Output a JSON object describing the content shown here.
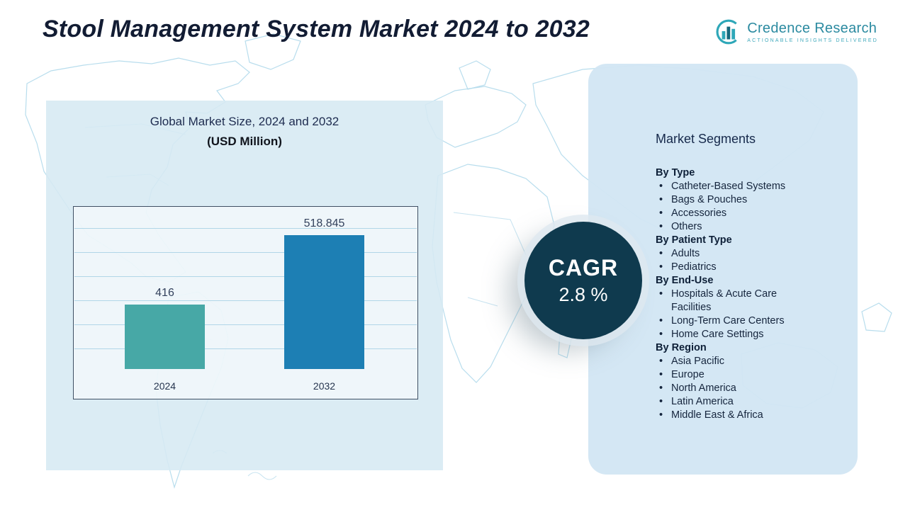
{
  "header": {
    "title": "Stool Management System Market 2024 to 2032",
    "logo": {
      "name": "Credence Research",
      "tagline": "ACTIONABLE INSIGHTS DELIVERED"
    }
  },
  "chart": {
    "title_line1": "Global Market Size, 2024 and 2032",
    "title_line2": "(USD Million)"
  },
  "chart_data": {
    "type": "bar",
    "title": "Global Market Size, 2024 and 2032 (USD Million)",
    "categories": [
      "2024",
      "2032"
    ],
    "values": [
      416,
      518.845
    ],
    "value_labels": [
      "416",
      "518.845"
    ],
    "unit": "USD Million",
    "grid": true,
    "legend": "none",
    "ylim": [
      320,
      580
    ],
    "bar_colors": [
      "#47a8a6",
      "#1d7fb4"
    ]
  },
  "cagr": {
    "label": "CAGR",
    "value": "2.8 %"
  },
  "segments": {
    "title": "Market Segments",
    "groups": [
      {
        "label": "By Type",
        "items": [
          "Catheter-Based Systems",
          "Bags & Pouches",
          "Accessories",
          "Others"
        ]
      },
      {
        "label": "By Patient Type",
        "items": [
          "Adults",
          "Pediatrics"
        ]
      },
      {
        "label": "By End-Use",
        "items": [
          "Hospitals & Acute Care Facilities",
          "Long-Term Care Centers",
          "Home Care Settings"
        ]
      },
      {
        "label": "By Region",
        "items": [
          "Asia Pacific",
          "Europe",
          "North America",
          "Latin America",
          "Middle East & Africa"
        ]
      }
    ]
  },
  "colors": {
    "bar_2024": "#47a8a6",
    "bar_2032": "#1d7fb4",
    "cagr_circle": "#0f3a4e",
    "panel_bg": "#d6e9f3",
    "map_line": "#b4dbec",
    "title_text": "#121c33",
    "logo_teal": "#2b8aa0"
  }
}
